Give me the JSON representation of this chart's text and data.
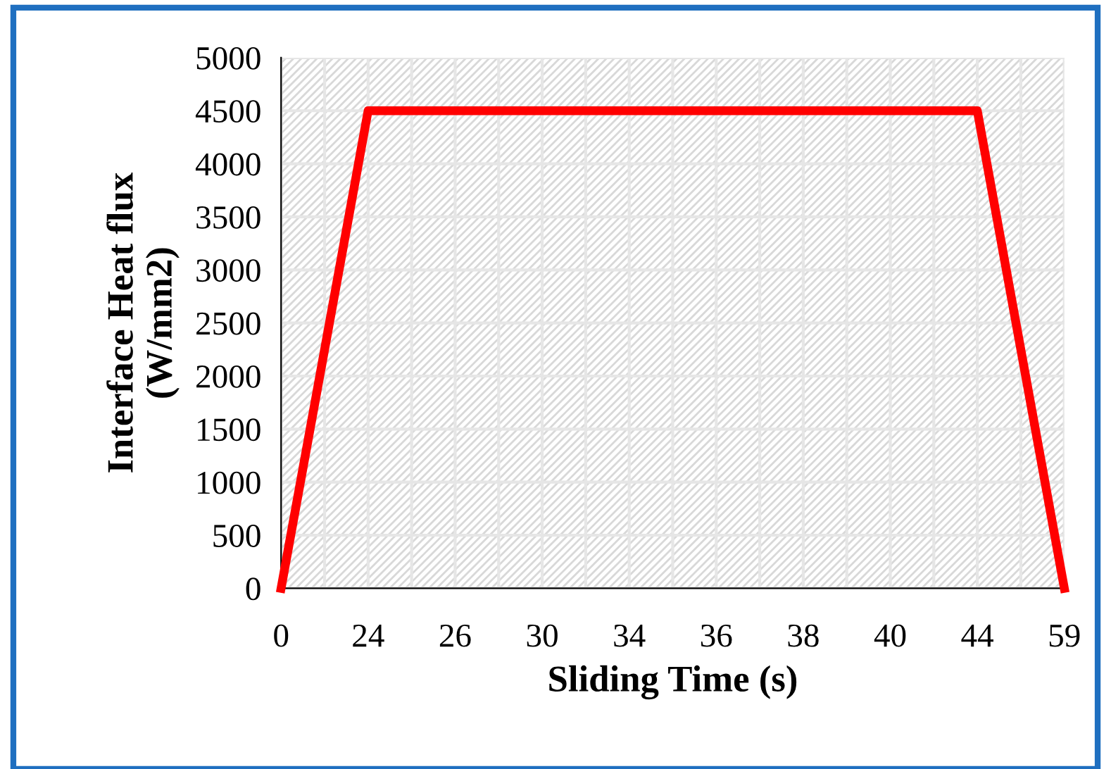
{
  "chart_data": {
    "type": "line",
    "xlabel": "Sliding Time (s)",
    "ylabel": "Interface Heat flux\n(W/mm2)",
    "categories": [
      "0",
      "24",
      "26",
      "30",
      "34",
      "36",
      "38",
      "40",
      "44",
      "59"
    ],
    "series": [
      {
        "color": "#ff0000",
        "values": [
          0,
          4500,
          4500,
          4500,
          4500,
          4500,
          4500,
          4500,
          4500,
          0
        ]
      }
    ],
    "ylim": [
      0,
      5000
    ],
    "yticks": [
      0,
      500,
      1000,
      1500,
      2000,
      2500,
      3000,
      3500,
      4000,
      4500,
      5000
    ],
    "grid": true,
    "marker": "none",
    "line_style": "solid",
    "legend": false
  }
}
